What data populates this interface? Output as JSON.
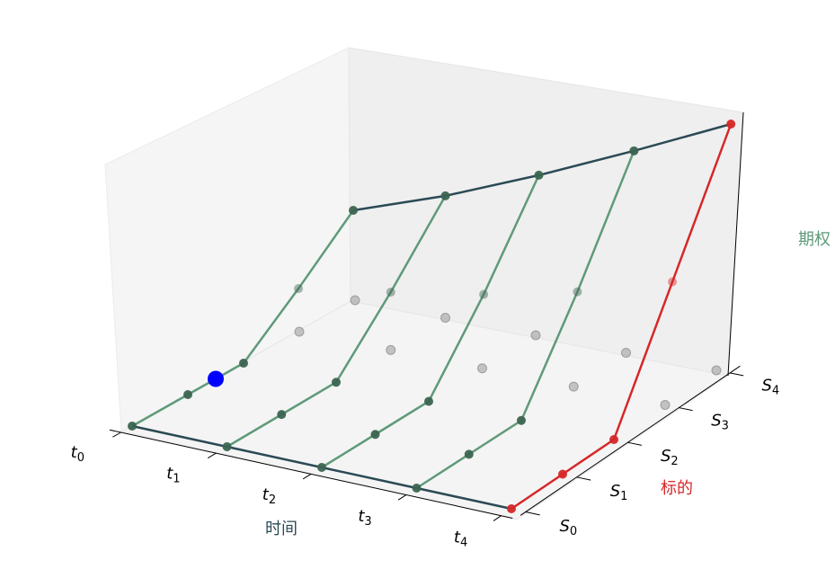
{
  "chart_data": {
    "type": "line3d",
    "x_label": "时间",
    "y_label": "标的",
    "z_label": "期权",
    "x_categories": [
      {
        "symbol": "t",
        "sub": "0"
      },
      {
        "symbol": "t",
        "sub": "1"
      },
      {
        "symbol": "t",
        "sub": "2"
      },
      {
        "symbol": "t",
        "sub": "3"
      },
      {
        "symbol": "t",
        "sub": "4"
      }
    ],
    "y_categories": [
      {
        "symbol": "S",
        "sub": "0"
      },
      {
        "symbol": "S",
        "sub": "1"
      },
      {
        "symbol": "S",
        "sub": "2"
      },
      {
        "symbol": "S",
        "sub": "3"
      },
      {
        "symbol": "S",
        "sub": "4"
      }
    ],
    "z": [
      [
        0,
        0,
        0,
        0.35,
        0.73
      ],
      [
        0,
        0,
        0,
        0.47,
        0.99
      ],
      [
        0,
        0,
        0,
        0.6,
        1.3
      ],
      [
        0,
        0,
        0,
        0.77,
        1.64
      ],
      [
        0,
        0,
        0,
        1,
        2
      ]
    ],
    "line_color": "#5f9a7a",
    "point_color": "#3b6450",
    "edge_color": "#2b4a55",
    "final_color": "#d62728",
    "x_label_color": "#2b4a55",
    "y_label_color": "#d62728",
    "z_label_color": "#5f9a7a",
    "highlight": {
      "x": 0,
      "y": 1.5,
      "z": 0,
      "color": "#0000ff"
    }
  }
}
